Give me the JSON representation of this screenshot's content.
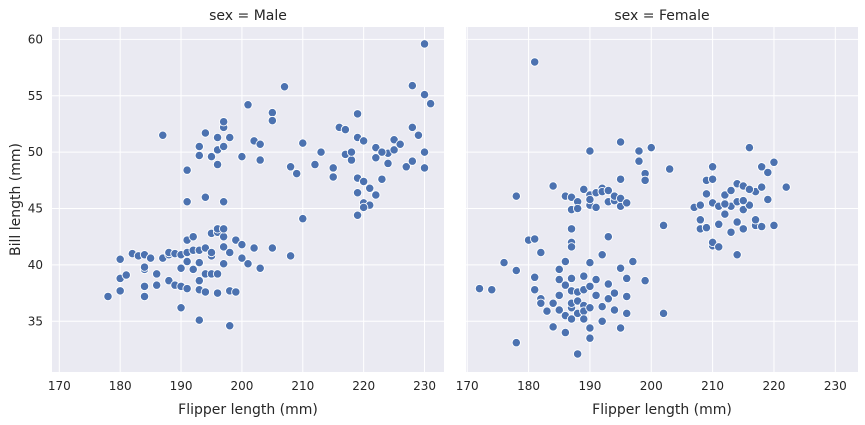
{
  "chart_data": {
    "type": "scatter",
    "color": "#4c72b0",
    "background": "#eaeaf2",
    "grid": true,
    "shared_y": true,
    "ylabel": "Bill length (mm)",
    "ylim": [
      30.5,
      61.1
    ],
    "yticks": [
      35,
      40,
      45,
      50,
      55,
      60
    ],
    "panels": [
      {
        "title": "sex = Male",
        "xlabel": "Flipper length (mm)",
        "xlim": [
          168.8,
          233.2
        ],
        "xticks": [
          170,
          180,
          190,
          200,
          210,
          220,
          230
        ],
        "points": [
          [
            178,
            37.2
          ],
          [
            180,
            37.7
          ],
          [
            180,
            38.8
          ],
          [
            181,
            39.1
          ],
          [
            180,
            40.5
          ],
          [
            182,
            41.0
          ],
          [
            183,
            40.8
          ],
          [
            184,
            40.9
          ],
          [
            184,
            37.2
          ],
          [
            184,
            38.1
          ],
          [
            184,
            39.6
          ],
          [
            184,
            39.8
          ],
          [
            185,
            40.6
          ],
          [
            186,
            39.2
          ],
          [
            186,
            38.2
          ],
          [
            187,
            40.6
          ],
          [
            188,
            40.9
          ],
          [
            188,
            41.1
          ],
          [
            188,
            38.6
          ],
          [
            189,
            41.0
          ],
          [
            189,
            38.2
          ],
          [
            190,
            40.9
          ],
          [
            190,
            36.2
          ],
          [
            190,
            38.1
          ],
          [
            190,
            39.7
          ],
          [
            191,
            41.1
          ],
          [
            191,
            42.2
          ],
          [
            191,
            40.3
          ],
          [
            191,
            37.9
          ],
          [
            192,
            41.3
          ],
          [
            192,
            39.6
          ],
          [
            192,
            42.5
          ],
          [
            193,
            41.3
          ],
          [
            193,
            40.2
          ],
          [
            193,
            37.8
          ],
          [
            193,
            35.1
          ],
          [
            193,
            38.6
          ],
          [
            194,
            39.2
          ],
          [
            194,
            41.5
          ],
          [
            194,
            37.6
          ],
          [
            195,
            40.8
          ],
          [
            195,
            39.2
          ],
          [
            195,
            42.8
          ],
          [
            195,
            41.1
          ],
          [
            196,
            39.2
          ],
          [
            196,
            42.9
          ],
          [
            196,
            43.2
          ],
          [
            196,
            37.5
          ],
          [
            197,
            42.5
          ],
          [
            197,
            41.6
          ],
          [
            197,
            40.1
          ],
          [
            197,
            43.2
          ],
          [
            198,
            41.1
          ],
          [
            198,
            34.6
          ],
          [
            198,
            37.7
          ],
          [
            199,
            42.2
          ],
          [
            199,
            37.6
          ],
          [
            200,
            41.8
          ],
          [
            200,
            40.6
          ],
          [
            201,
            40.1
          ],
          [
            202,
            41.5
          ],
          [
            203,
            39.7
          ],
          [
            205,
            41.5
          ],
          [
            208,
            40.8
          ],
          [
            187,
            51.5
          ],
          [
            191,
            48.4
          ],
          [
            191,
            45.6
          ],
          [
            193,
            50.5
          ],
          [
            193,
            49.7
          ],
          [
            194,
            46.0
          ],
          [
            194,
            51.7
          ],
          [
            195,
            49.6
          ],
          [
            196,
            50.2
          ],
          [
            196,
            48.9
          ],
          [
            196,
            51.3
          ],
          [
            197,
            52.2
          ],
          [
            197,
            52.7
          ],
          [
            197,
            50.5
          ],
          [
            198,
            51.3
          ],
          [
            197,
            45.6
          ],
          [
            200,
            49.6
          ],
          [
            201,
            54.2
          ],
          [
            202,
            51.0
          ],
          [
            203,
            49.3
          ],
          [
            203,
            50.7
          ],
          [
            205,
            53.5
          ],
          [
            205,
            52.8
          ],
          [
            207,
            55.8
          ],
          [
            208,
            48.7
          ],
          [
            209,
            48.1
          ],
          [
            210,
            50.8
          ],
          [
            210,
            44.1
          ],
          [
            212,
            48.9
          ],
          [
            213,
            50.0
          ],
          [
            215,
            48.6
          ],
          [
            217,
            49.8
          ],
          [
            218,
            49.3
          ],
          [
            219,
            51.3
          ],
          [
            219,
            47.7
          ],
          [
            219,
            46.4
          ],
          [
            220,
            45.5
          ],
          [
            220,
            47.4
          ],
          [
            221,
            46.8
          ],
          [
            222,
            50.4
          ],
          [
            222,
            49.5
          ],
          [
            222,
            46.2
          ],
          [
            223,
            47.6
          ],
          [
            224,
            49.9
          ],
          [
            224,
            49.0
          ],
          [
            225,
            50.2
          ],
          [
            225,
            51.1
          ],
          [
            226,
            50.7
          ],
          [
            227,
            48.7
          ],
          [
            228,
            55.9
          ],
          [
            228,
            52.2
          ],
          [
            228,
            49.2
          ],
          [
            229,
            51.5
          ],
          [
            230,
            59.6
          ],
          [
            230,
            55.1
          ],
          [
            230,
            50.0
          ],
          [
            231,
            54.3
          ],
          [
            230,
            48.6
          ],
          [
            215,
            47.8
          ],
          [
            216,
            52.2
          ],
          [
            217,
            52.0
          ],
          [
            218,
            50.0
          ],
          [
            219,
            53.4
          ],
          [
            220,
            51.0
          ],
          [
            221,
            45.3
          ],
          [
            223,
            50.0
          ],
          [
            220,
            45.1
          ],
          [
            219,
            44.4
          ]
        ]
      },
      {
        "title": "sex = Female",
        "xlabel": "Flipper length (mm)",
        "xlim": [
          169.8,
          233.7
        ],
        "xticks": [
          170,
          180,
          190,
          200,
          210,
          220,
          230
        ],
        "points": [
          [
            172,
            37.9
          ],
          [
            174,
            37.8
          ],
          [
            176,
            40.2
          ],
          [
            178,
            33.1
          ],
          [
            178,
            39.5
          ],
          [
            178,
            46.1
          ],
          [
            180,
            42.2
          ],
          [
            181,
            42.3
          ],
          [
            181,
            58.0
          ],
          [
            181,
            38.9
          ],
          [
            181,
            37.8
          ],
          [
            182,
            41.1
          ],
          [
            182,
            37.0
          ],
          [
            182,
            36.6
          ],
          [
            183,
            35.9
          ],
          [
            184,
            34.5
          ],
          [
            184,
            36.6
          ],
          [
            185,
            38.7
          ],
          [
            185,
            36.0
          ],
          [
            185,
            37.3
          ],
          [
            185,
            39.6
          ],
          [
            186,
            38.2
          ],
          [
            186,
            34.0
          ],
          [
            186,
            35.5
          ],
          [
            186,
            40.3
          ],
          [
            187,
            36.2
          ],
          [
            187,
            38.8
          ],
          [
            187,
            37.7
          ],
          [
            187,
            36.6
          ],
          [
            187,
            35.2
          ],
          [
            187,
            42.0
          ],
          [
            187,
            43.2
          ],
          [
            187,
            41.6
          ],
          [
            188,
            36.8
          ],
          [
            188,
            37.6
          ],
          [
            188,
            35.7
          ],
          [
            188,
            32.1
          ],
          [
            189,
            39.0
          ],
          [
            189,
            36.4
          ],
          [
            189,
            37.8
          ],
          [
            189,
            35.9
          ],
          [
            189,
            35.2
          ],
          [
            190,
            36.2
          ],
          [
            190,
            34.4
          ],
          [
            190,
            38.1
          ],
          [
            190,
            40.2
          ],
          [
            190,
            33.5
          ],
          [
            191,
            37.3
          ],
          [
            191,
            38.7
          ],
          [
            192,
            35.0
          ],
          [
            192,
            40.9
          ],
          [
            192,
            36.3
          ],
          [
            193,
            37.0
          ],
          [
            193,
            38.3
          ],
          [
            194,
            37.5
          ],
          [
            194,
            36.0
          ],
          [
            195,
            39.7
          ],
          [
            195,
            34.4
          ],
          [
            196,
            38.8
          ],
          [
            196,
            37.2
          ],
          [
            197,
            40.3
          ],
          [
            196,
            35.7
          ],
          [
            199,
            38.6
          ],
          [
            202,
            35.7
          ],
          [
            184,
            47.0
          ],
          [
            186,
            46.1
          ],
          [
            187,
            46.0
          ],
          [
            187,
            44.9
          ],
          [
            188,
            45.6
          ],
          [
            188,
            45.0
          ],
          [
            189,
            46.7
          ],
          [
            190,
            46.2
          ],
          [
            190,
            45.3
          ],
          [
            190,
            45.8
          ],
          [
            191,
            46.4
          ],
          [
            191,
            45.1
          ],
          [
            192,
            46.8
          ],
          [
            192,
            46.5
          ],
          [
            193,
            45.6
          ],
          [
            193,
            46.6
          ],
          [
            193,
            42.5
          ],
          [
            194,
            45.7
          ],
          [
            194,
            46.1
          ],
          [
            195,
            45.2
          ],
          [
            195,
            45.9
          ],
          [
            196,
            45.5
          ],
          [
            195,
            47.6
          ],
          [
            195,
            50.9
          ],
          [
            198,
            49.2
          ],
          [
            198,
            50.1
          ],
          [
            199,
            48.1
          ],
          [
            199,
            47.5
          ],
          [
            200,
            50.4
          ],
          [
            202,
            43.5
          ],
          [
            190,
            50.1
          ],
          [
            203,
            48.5
          ],
          [
            207,
            45.1
          ],
          [
            208,
            45.3
          ],
          [
            208,
            43.2
          ],
          [
            208,
            44.0
          ],
          [
            209,
            46.3
          ],
          [
            209,
            47.5
          ],
          [
            210,
            48.7
          ],
          [
            210,
            45.5
          ],
          [
            210,
            41.7
          ],
          [
            210,
            42.0
          ],
          [
            211,
            43.6
          ],
          [
            211,
            45.2
          ],
          [
            212,
            45.5
          ],
          [
            212,
            46.2
          ],
          [
            212,
            44.5
          ],
          [
            213,
            45.2
          ],
          [
            213,
            42.9
          ],
          [
            214,
            45.6
          ],
          [
            214,
            47.2
          ],
          [
            214,
            40.9
          ],
          [
            215,
            43.2
          ],
          [
            215,
            44.9
          ],
          [
            215,
            47.0
          ],
          [
            216,
            45.3
          ],
          [
            216,
            50.4
          ],
          [
            217,
            46.5
          ],
          [
            217,
            43.5
          ],
          [
            218,
            43.4
          ],
          [
            218,
            46.9
          ],
          [
            219,
            48.2
          ],
          [
            219,
            45.8
          ],
          [
            220,
            43.5
          ],
          [
            220,
            49.1
          ],
          [
            222,
            46.9
          ],
          [
            209,
            43.3
          ],
          [
            211,
            41.6
          ],
          [
            213,
            46.6
          ],
          [
            214,
            43.8
          ],
          [
            212,
            45.4
          ],
          [
            216,
            46.7
          ],
          [
            217,
            44.0
          ],
          [
            215,
            45.7
          ],
          [
            210,
            47.6
          ],
          [
            218,
            48.7
          ]
        ]
      }
    ]
  }
}
